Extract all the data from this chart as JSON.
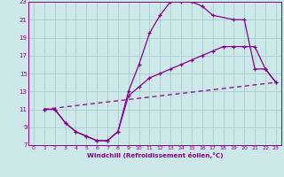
{
  "bg_color": "#cce8e8",
  "grid_color": "#aacccc",
  "line_color": "#880088",
  "xlim": [
    -0.5,
    23.5
  ],
  "ylim": [
    7,
    23
  ],
  "xticks": [
    0,
    1,
    2,
    3,
    4,
    5,
    6,
    7,
    8,
    9,
    10,
    11,
    12,
    13,
    14,
    15,
    16,
    17,
    18,
    19,
    20,
    21,
    22,
    23
  ],
  "yticks": [
    7,
    9,
    11,
    13,
    15,
    17,
    19,
    21,
    23
  ],
  "xlabel": "Windchill (Refroidissement éolien,°C)",
  "line1_x": [
    1,
    2,
    3,
    4,
    5,
    6,
    7,
    8,
    9,
    10,
    11,
    12,
    13,
    14,
    15,
    16,
    17,
    19,
    20,
    21,
    22,
    23
  ],
  "line1_y": [
    11,
    11,
    9.5,
    8.5,
    8,
    7.5,
    7.5,
    8.5,
    13,
    16,
    19.5,
    21.5,
    23,
    23,
    23,
    22.5,
    21.5,
    21,
    21,
    15.5,
    15.5,
    14
  ],
  "line2_x": [
    1,
    2,
    3,
    4,
    5,
    6,
    7,
    8,
    9,
    10,
    11,
    12,
    13,
    14,
    15,
    16,
    17,
    18,
    19,
    20,
    21,
    22,
    23
  ],
  "line2_y": [
    11,
    11,
    9.5,
    8.5,
    8,
    7.5,
    7.5,
    8.5,
    12.5,
    13.5,
    14.5,
    15,
    15.5,
    16,
    16.5,
    17,
    17.5,
    18,
    18,
    18,
    18,
    15.5,
    14
  ],
  "line3_x": [
    1,
    23
  ],
  "line3_y": [
    11,
    14
  ]
}
